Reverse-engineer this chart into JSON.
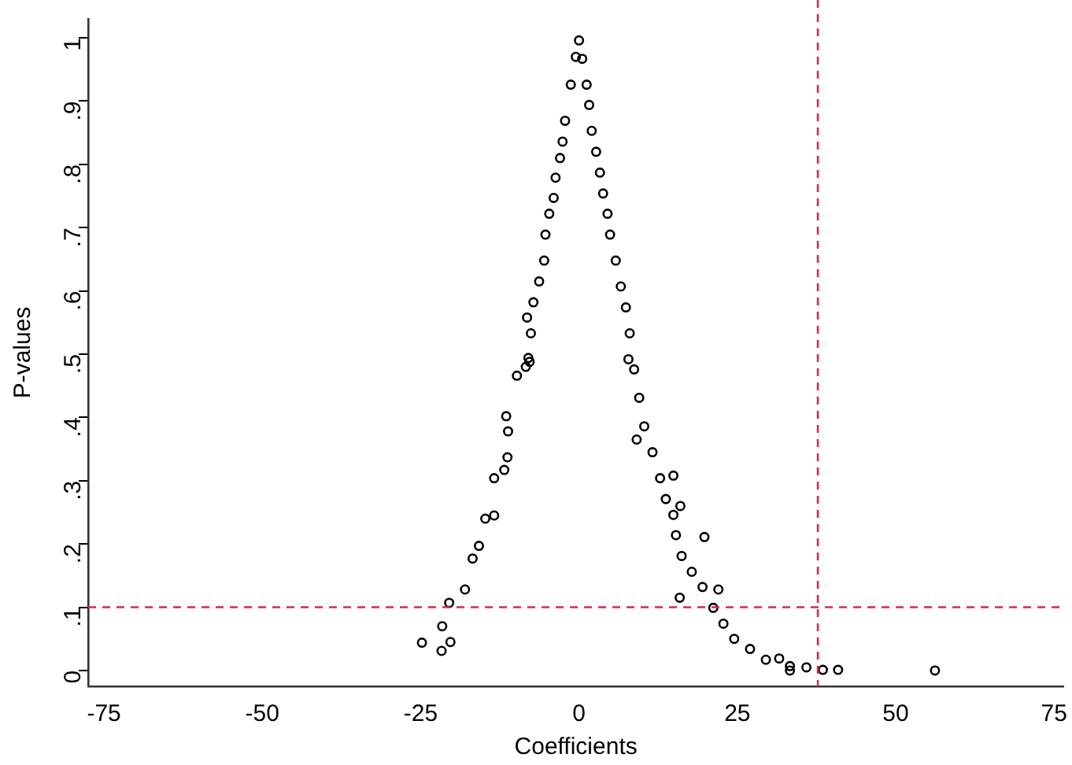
{
  "chart_data": {
    "type": "scatter",
    "xlabel": "Coefficients",
    "ylabel": "P-values",
    "xlim": [
      -77.5,
      76.5
    ],
    "ylim": [
      -0.025,
      1.03
    ],
    "xticks": [
      -75,
      -50,
      -25,
      0,
      25,
      50,
      75
    ],
    "yticks": [
      0,
      {
        "value": 0.1,
        "label": ".1"
      },
      {
        "value": 0.2,
        "label": ".2"
      },
      {
        "value": 0.3,
        "label": ".3"
      },
      {
        "value": 0.4,
        "label": ".4"
      },
      {
        "value": 0.5,
        "label": ".5"
      },
      {
        "value": 0.6,
        "label": ".6"
      },
      {
        "value": 0.7,
        "label": ".7"
      },
      {
        "value": 0.8,
        "label": ".8"
      },
      {
        "value": 0.9,
        "label": ".9"
      },
      1
    ],
    "grid": false,
    "legend": false,
    "marker": "circle",
    "ref_lines": [
      {
        "axis": "x",
        "value": 37.7,
        "color": "#d62a4e",
        "line_style": "dashed"
      },
      {
        "axis": "y",
        "value": 0.1,
        "color": "#d62a4e",
        "line_style": "dashed"
      }
    ],
    "series": [
      {
        "color": "#000000",
        "x": [
          -24.8,
          -21.7,
          -20.3,
          -21.6,
          -20.5,
          -18,
          -16.8,
          -15.8,
          -14.8,
          -13.4,
          -13.4,
          -11.8,
          -11.3,
          -11.2,
          -11.5,
          -9.8,
          -8.4,
          -8,
          -7.8,
          -7.6,
          -8.2,
          -7.2,
          -6.3,
          -5.5,
          -5.3,
          -4.7,
          -4,
          -3.7,
          -3,
          -2.6,
          -2.2,
          -1.3,
          -0.5,
          0,
          0.5,
          1.2,
          1.6,
          2,
          2.7,
          3.3,
          3.8,
          4.5,
          4.9,
          5.8,
          6.6,
          7.4,
          8,
          7.8,
          8.7,
          9.1,
          9.5,
          10.3,
          11.6,
          12.8,
          13.7,
          14.9,
          14.9,
          15.3,
          16,
          16.2,
          15.9,
          17.8,
          19.5,
          19.8,
          21.2,
          22,
          22.8,
          24.5,
          27,
          29.5,
          31.6,
          33.3,
          33.3,
          35.9,
          38.5,
          40.9,
          56.2
        ],
        "values": [
          0.044,
          0.031,
          0.045,
          0.07,
          0.107,
          0.128,
          0.177,
          0.197,
          0.24,
          0.245,
          0.304,
          0.317,
          0.337,
          0.378,
          0.402,
          0.466,
          0.48,
          0.494,
          0.488,
          0.533,
          0.558,
          0.582,
          0.615,
          0.648,
          0.689,
          0.722,
          0.747,
          0.779,
          0.81,
          0.836,
          0.869,
          0.926,
          0.97,
          0.996,
          0.967,
          0.926,
          0.894,
          0.853,
          0.82,
          0.787,
          0.754,
          0.722,
          0.689,
          0.648,
          0.607,
          0.574,
          0.533,
          0.492,
          0.476,
          0.365,
          0.431,
          0.386,
          0.345,
          0.304,
          0.271,
          0.246,
          0.308,
          0.214,
          0.26,
          0.181,
          0.115,
          0.156,
          0.132,
          0.211,
          0.099,
          0.128,
          0.074,
          0.05,
          0.034,
          0.017,
          0.019,
          0.007,
          0,
          0.005,
          0.001,
          0.001,
          0
        ]
      }
    ]
  }
}
